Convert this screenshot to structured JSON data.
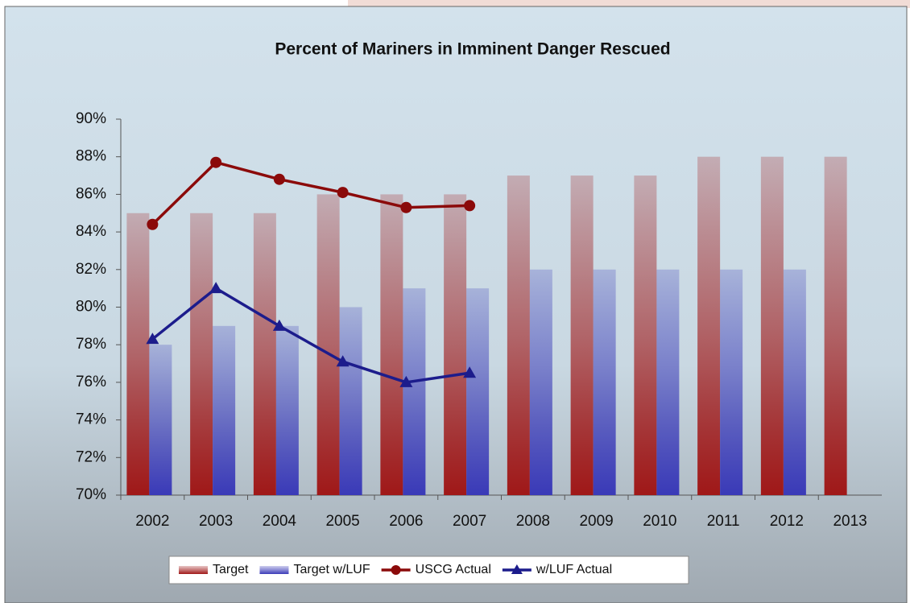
{
  "chart_data": {
    "type": "bar_line",
    "title": "Percent of Mariners in Imminent Danger Rescued",
    "categories": [
      "2002",
      "2003",
      "2004",
      "2005",
      "2006",
      "2007",
      "2008",
      "2009",
      "2010",
      "2011",
      "2012",
      "2013"
    ],
    "series": [
      {
        "name": "Target",
        "type": "bar",
        "color": "#a01818",
        "values": [
          85,
          85,
          85,
          86,
          86,
          86,
          87,
          87,
          87,
          88,
          88,
          88
        ]
      },
      {
        "name": "Target w/LUF",
        "type": "bar",
        "color": "#3a3ab8",
        "values": [
          78,
          79,
          79,
          80,
          81,
          81,
          82,
          82,
          82,
          82,
          82,
          null
        ]
      },
      {
        "name": "USCG Actual",
        "type": "line",
        "marker": "circle",
        "color": "#8b0a0a",
        "values": [
          84.4,
          87.7,
          86.8,
          86.1,
          85.3,
          85.4,
          null,
          null,
          null,
          null,
          null,
          null
        ]
      },
      {
        "name": "w/LUF Actual",
        "type": "line",
        "marker": "triangle",
        "color": "#1c1c8c",
        "values": [
          78.3,
          81.0,
          79.0,
          77.1,
          76.0,
          76.5,
          null,
          null,
          null,
          null,
          null,
          null
        ]
      }
    ],
    "ylim": [
      70,
      90
    ],
    "yticks": [
      {
        "value": 70,
        "label": "70%"
      },
      {
        "value": 72,
        "label": "72%"
      },
      {
        "value": 74,
        "label": "74%"
      },
      {
        "value": 76,
        "label": "76%"
      },
      {
        "value": 78,
        "label": "78%"
      },
      {
        "value": 80,
        "label": "80%"
      },
      {
        "value": 82,
        "label": "82%"
      },
      {
        "value": 84,
        "label": "84%"
      },
      {
        "value": 86,
        "label": "86%"
      },
      {
        "value": 88,
        "label": "88%"
      },
      {
        "value": 90,
        "label": "90%"
      }
    ],
    "legend": "bottom"
  }
}
